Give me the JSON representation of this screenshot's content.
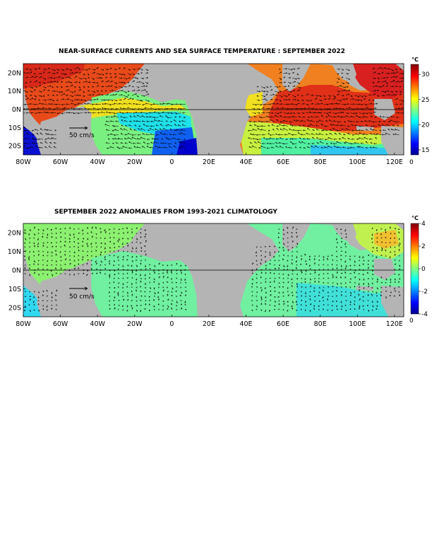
{
  "chart_data": [
    {
      "type": "heatmap",
      "title": "NEAR-SURFACE CURRENTS AND SEA SURFACE TEMPERATURE : SEPTEMBER 2022",
      "x_tick_labels": [
        "80W",
        "60W",
        "40W",
        "20W",
        "0",
        "20E",
        "40E",
        "60E",
        "80E",
        "100E",
        "120E"
      ],
      "x_tick_values": [
        -80,
        -60,
        -40,
        -20,
        0,
        20,
        40,
        60,
        80,
        100,
        120
      ],
      "y_tick_labels": [
        "20N",
        "10N",
        "0N",
        "10S",
        "20S"
      ],
      "y_tick_values": [
        20,
        10,
        0,
        -10,
        -20
      ],
      "xlim": [
        -80,
        125
      ],
      "ylim": [
        -25,
        25
      ],
      "colorbar": {
        "unit": "°C",
        "tick_labels": [
          "30",
          "25",
          "20",
          "15"
        ],
        "tick_values": [
          30,
          25,
          20,
          15
        ],
        "range": [
          14,
          32
        ],
        "colormap": "jet",
        "bottom_label": "0"
      },
      "scale_arrow_label": "50 cm/s",
      "land_color": "#b4b4b4",
      "equator_line": true
    },
    {
      "type": "heatmap",
      "title": "SEPTEMBER 2022 ANOMALIES FROM 1993-2021 CLIMATOLOGY",
      "x_tick_labels": [
        "80W",
        "60W",
        "40W",
        "20W",
        "0",
        "20E",
        "40E",
        "60E",
        "80E",
        "100E",
        "120E"
      ],
      "x_tick_values": [
        -80,
        -60,
        -40,
        -20,
        0,
        20,
        40,
        60,
        80,
        100,
        120
      ],
      "y_tick_labels": [
        "20N",
        "10N",
        "0N",
        "10S",
        "20S"
      ],
      "y_tick_values": [
        20,
        10,
        0,
        -10,
        -20
      ],
      "xlim": [
        -80,
        125
      ],
      "ylim": [
        -25,
        25
      ],
      "colorbar": {
        "unit": "°C",
        "tick_labels": [
          "4",
          "2",
          "0",
          "-2",
          "-4"
        ],
        "tick_values": [
          4,
          2,
          0,
          -2,
          -4
        ],
        "range": [
          -4,
          4
        ],
        "colormap": "jet",
        "bottom_label": "0"
      },
      "scale_arrow_label": "50 cm/s",
      "land_color": "#b4b4b4",
      "equator_line": true
    }
  ]
}
